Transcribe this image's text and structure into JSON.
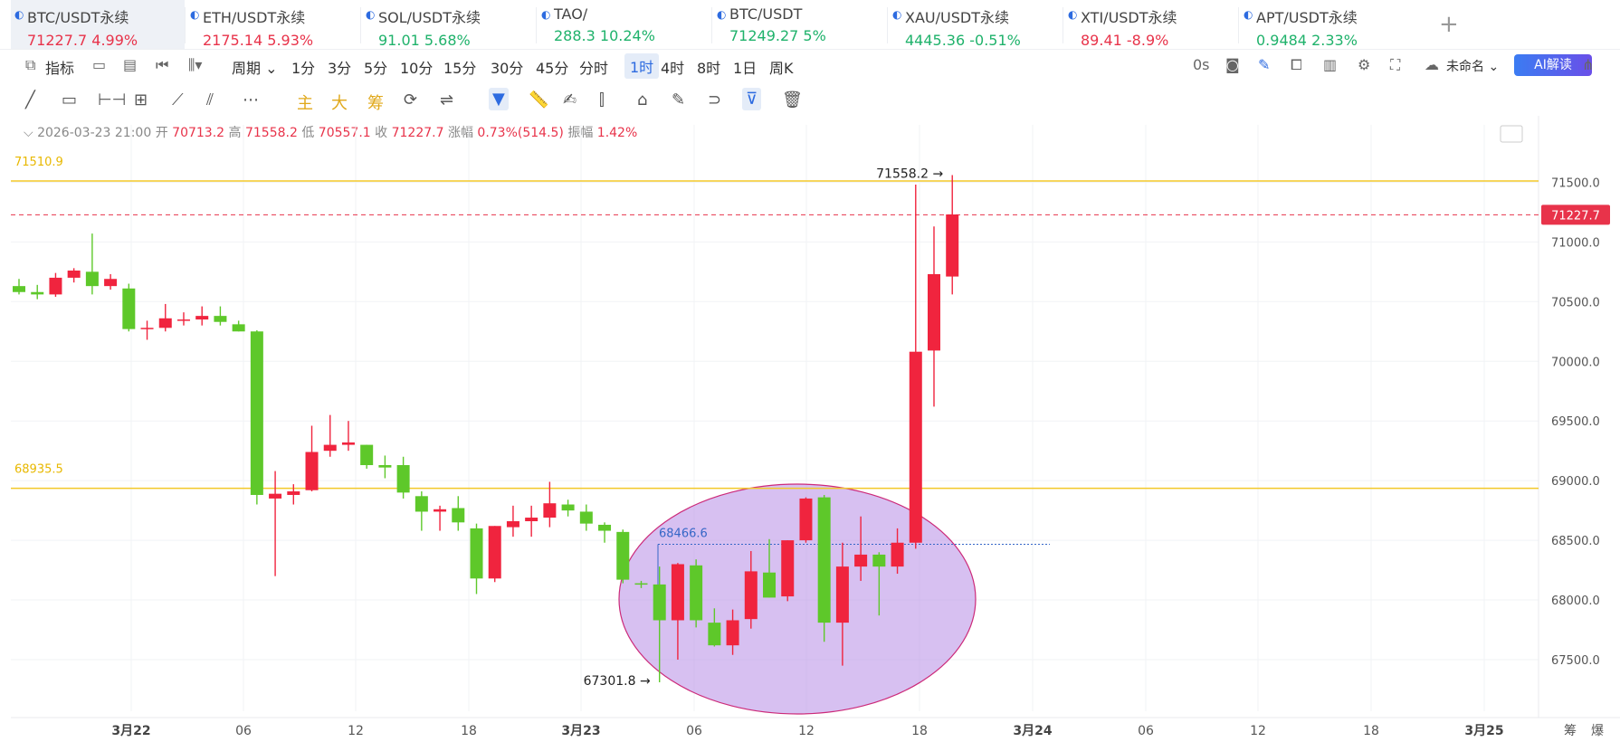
{
  "tabs": [
    {
      "name": "BTC/USDT永续",
      "price": "71227.7",
      "change": "4.99%",
      "dir": "down",
      "active": true
    },
    {
      "name": "ETH/USDT永续",
      "price": "2175.14",
      "change": "5.93%",
      "dir": "down"
    },
    {
      "name": "SOL/USDT永续",
      "price": "91.01",
      "change": "5.68%",
      "dir": "up"
    },
    {
      "name": "TAO/",
      "price": "288.3",
      "change": "10.24%",
      "dir": "up"
    },
    {
      "name": "BTC/USDT",
      "price": "71249.27",
      "change": "5%",
      "dir": "up"
    },
    {
      "name": "XAU/USDT永续",
      "price": "4445.36",
      "change": "-0.51%",
      "dir": "up"
    },
    {
      "name": "XTI/USDT永续",
      "price": "89.41",
      "change": "-8.9%",
      "dir": "down"
    },
    {
      "name": "APT/USDT永续",
      "price": "0.9484",
      "change": "2.33%",
      "dir": "up"
    }
  ],
  "toolbar": {
    "indicators": "指标",
    "period": "周期",
    "intervals": [
      "1分",
      "3分",
      "5分",
      "10分",
      "15分",
      "30分",
      "45分",
      "分时",
      "1时",
      "4时",
      "8时",
      "1日",
      "周K"
    ],
    "selected_interval": "1时",
    "countdown": "0s",
    "layout_name": "未命名",
    "ai_button": "AI解读"
  },
  "drawing_tools": {
    "main": "主",
    "big": "大",
    "chip": "筹"
  },
  "ohlc": {
    "datetime": "2026-03-23 21:00",
    "open_label": "开",
    "open": "70713.2",
    "high_label": "高",
    "high": "71558.2",
    "low_label": "低",
    "low": "70557.1",
    "close_label": "收",
    "close": "71227.7",
    "change_label": "涨幅",
    "change": "0.73%(514.5)",
    "amp_label": "振幅",
    "amp": "1.42%"
  },
  "chart_data": {
    "type": "candlestick",
    "interval": "1时",
    "y_ticks": [
      67500.0,
      68000.0,
      68500.0,
      69000.0,
      69500.0,
      70000.0,
      70500.0,
      71000.0,
      71500.0
    ],
    "x_ticks": [
      "3月22",
      "06",
      "12",
      "18",
      "3月23",
      "06",
      "12",
      "18",
      "3月24",
      "06",
      "12",
      "18",
      "3月25"
    ],
    "x_bold": [
      "3月22",
      "3月23",
      "3月24",
      "3月25"
    ],
    "horizontal_lines": [
      {
        "label": "71510.9",
        "value": 71510.9,
        "color": "#f5d24a"
      },
      {
        "label": "68935.5",
        "value": 68935.5,
        "color": "#f5d24a"
      }
    ],
    "dotted_line": {
      "label": "68466.6",
      "value": 68466.6
    },
    "current_price": "71227.7",
    "high_marker": "71558.2",
    "low_marker": "67301.8",
    "corner_labels": [
      "筹",
      "爆"
    ],
    "candles": [
      [
        70630,
        70690,
        70560,
        70580
      ],
      [
        70580,
        70640,
        70520,
        70560
      ],
      [
        70560,
        70740,
        70540,
        70700
      ],
      [
        70700,
        70780,
        70660,
        70760
      ],
      [
        70750,
        71070,
        70560,
        70630
      ],
      [
        70630,
        70730,
        70600,
        70690
      ],
      [
        70610,
        70650,
        70250,
        70270
      ],
      [
        70270,
        70340,
        70180,
        70280
      ],
      [
        70280,
        70480,
        70250,
        70360
      ],
      [
        70340,
        70410,
        70300,
        70350
      ],
      [
        70350,
        70460,
        70300,
        70380
      ],
      [
        70380,
        70460,
        70300,
        70330
      ],
      [
        70310,
        70340,
        70250,
        70250
      ],
      [
        70250,
        70260,
        68800,
        68880
      ],
      [
        68850,
        69080,
        68200,
        68890
      ],
      [
        68880,
        68970,
        68800,
        68910
      ],
      [
        68920,
        69460,
        68910,
        69240
      ],
      [
        69250,
        69550,
        69200,
        69300
      ],
      [
        69300,
        69500,
        69250,
        69320
      ],
      [
        69300,
        69300,
        69100,
        69130
      ],
      [
        69130,
        69210,
        69020,
        69110
      ],
      [
        69130,
        69200,
        68850,
        68900
      ],
      [
        68870,
        68910,
        68580,
        68740
      ],
      [
        68740,
        68790,
        68580,
        68760
      ],
      [
        68770,
        68870,
        68580,
        68650
      ],
      [
        68600,
        68640,
        68050,
        68180
      ],
      [
        68180,
        68620,
        68150,
        68620
      ],
      [
        68610,
        68790,
        68530,
        68660
      ],
      [
        68660,
        68790,
        68530,
        68690
      ],
      [
        68690,
        68990,
        68610,
        68810
      ],
      [
        68800,
        68840,
        68700,
        68750
      ],
      [
        68740,
        68800,
        68580,
        68640
      ],
      [
        68630,
        68650,
        68480,
        68580
      ],
      [
        68570,
        68590,
        68140,
        68170
      ],
      [
        68140,
        68160,
        68100,
        68130
      ],
      [
        68130,
        68280,
        67310,
        67830
      ],
      [
        67830,
        68310,
        67500,
        68300
      ],
      [
        68290,
        68340,
        67770,
        67830
      ],
      [
        67810,
        67930,
        67610,
        67620
      ],
      [
        67620,
        67920,
        67540,
        67830
      ],
      [
        67840,
        68410,
        67760,
        68240
      ],
      [
        68230,
        68510,
        68020,
        68020
      ],
      [
        68030,
        68500,
        67990,
        68500
      ],
      [
        68500,
        68860,
        68480,
        68850
      ],
      [
        68860,
        68880,
        67650,
        67810
      ],
      [
        67810,
        68480,
        67450,
        68280
      ],
      [
        68280,
        68700,
        68160,
        68380
      ],
      [
        68380,
        68400,
        67870,
        68280
      ],
      [
        68280,
        68600,
        68220,
        68480
      ],
      [
        68480,
        71480,
        68430,
        70080
      ],
      [
        70090,
        71130,
        69620,
        70730
      ],
      [
        70710,
        71560,
        70560,
        71230
      ]
    ]
  }
}
